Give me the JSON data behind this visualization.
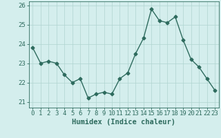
{
  "x": [
    0,
    1,
    2,
    3,
    4,
    5,
    6,
    7,
    8,
    9,
    10,
    11,
    12,
    13,
    14,
    15,
    16,
    17,
    18,
    19,
    20,
    21,
    22,
    23
  ],
  "y": [
    23.8,
    23.0,
    23.1,
    23.0,
    22.4,
    22.0,
    22.2,
    21.2,
    21.4,
    21.5,
    21.4,
    22.2,
    22.5,
    23.5,
    24.3,
    25.8,
    25.2,
    25.1,
    25.4,
    24.2,
    23.2,
    22.8,
    22.2,
    21.6
  ],
  "xlabel": "Humidex (Indice chaleur)",
  "ylabel": "",
  "ylim": [
    20.7,
    26.2
  ],
  "xlim": [
    -0.5,
    23.5
  ],
  "yticks": [
    21,
    22,
    23,
    24,
    25,
    26
  ],
  "xticks": [
    0,
    1,
    2,
    3,
    4,
    5,
    6,
    7,
    8,
    9,
    10,
    11,
    12,
    13,
    14,
    15,
    16,
    17,
    18,
    19,
    20,
    21,
    22,
    23
  ],
  "line_color": "#2e6b5e",
  "marker": "D",
  "marker_size": 2.5,
  "bg_color": "#d4eeed",
  "grid_color": "#afd4d0",
  "xlabel_color": "#2e6b5e",
  "tick_color": "#2e6b5e",
  "line_width": 1.0,
  "tick_fontsize": 6.5,
  "xlabel_fontsize": 7.5
}
